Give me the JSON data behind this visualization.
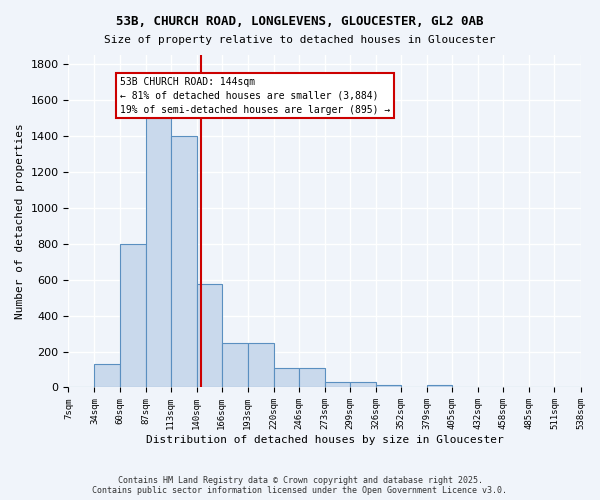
{
  "title_line1": "53B, CHURCH ROAD, LONGLEVENS, GLOUCESTER, GL2 0AB",
  "title_line2": "Size of property relative to detached houses in Gloucester",
  "xlabel": "Distribution of detached houses by size in Gloucester",
  "ylabel": "Number of detached properties",
  "bin_edges": [
    7,
    34,
    60,
    87,
    113,
    140,
    166,
    193,
    220,
    246,
    273,
    299,
    326,
    352,
    379,
    405,
    432,
    458,
    485,
    511,
    538
  ],
  "bar_heights": [
    0,
    130,
    800,
    1500,
    1400,
    575,
    250,
    250,
    110,
    110,
    30,
    30,
    15,
    0,
    15,
    0,
    0,
    0,
    0,
    0
  ],
  "bar_color": "#c9d9ec",
  "bar_edge_color": "#5a8fc0",
  "vline_x": 144,
  "vline_color": "#cc0000",
  "ylim": [
    0,
    1850
  ],
  "yticks": [
    0,
    200,
    400,
    600,
    800,
    1000,
    1200,
    1400,
    1600,
    1800
  ],
  "annotation_title": "53B CHURCH ROAD: 144sqm",
  "annotation_line1": "← 81% of detached houses are smaller (3,884)",
  "annotation_line2": "19% of semi-detached houses are larger (895) →",
  "annotation_box_color": "#ffffff",
  "annotation_box_edge_color": "#cc0000",
  "footer_line1": "Contains HM Land Registry data © Crown copyright and database right 2025.",
  "footer_line2": "Contains public sector information licensed under the Open Government Licence v3.0.",
  "background_color": "#f0f4fa",
  "grid_color": "#ffffff"
}
